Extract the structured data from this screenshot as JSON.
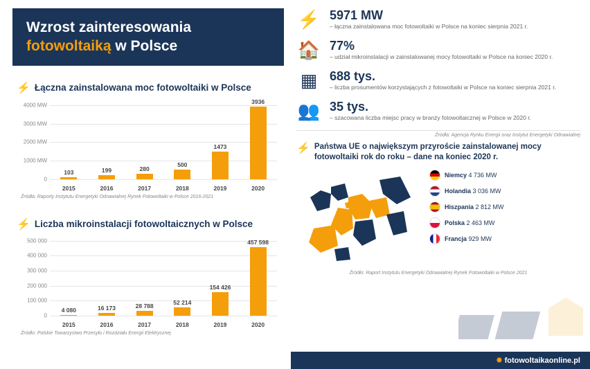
{
  "header": {
    "line1": "Wzrost zainteresowania",
    "accent": "fotowoltaiką",
    "line2_rest": " w Polsce"
  },
  "chart1": {
    "title": "Łączna zainstalowana moc fotowoltaiki w Polsce",
    "type": "bar",
    "categories": [
      "2015",
      "2016",
      "2017",
      "2018",
      "2019",
      "2020"
    ],
    "values": [
      103,
      199,
      280,
      500,
      1473,
      3936
    ],
    "bar_color": "#f59e0b",
    "y_ticks": [
      0,
      1000,
      2000,
      3000,
      4000
    ],
    "y_unit": "MW",
    "y_max": 4200,
    "source": "Źródła: Raporty Instytutu Energetyki Odnawialnej Rynek Fotowoltaiki w Polsce 2016-2021"
  },
  "chart2": {
    "title": "Liczba mikroinstalacji fotowoltaicznych w Polsce",
    "type": "bar",
    "categories": [
      "2015",
      "2016",
      "2017",
      "2018",
      "2019",
      "2020"
    ],
    "values": [
      4080,
      16173,
      28788,
      52214,
      154426,
      457598
    ],
    "value_labels": [
      "4 080",
      "16 173",
      "28 788",
      "52 214",
      "154 426",
      "457 598"
    ],
    "bar_color": "#f59e0b",
    "y_ticks": [
      0,
      100000,
      200000,
      300000,
      400000,
      500000
    ],
    "y_tick_labels": [
      "0",
      "100 000",
      "200 000",
      "300 000",
      "400 000",
      "500 000"
    ],
    "y_max": 520000,
    "source": "Źródło: Polskie Towarzystwo Przesyłu i Rozdziału Energii Elektrycznej"
  },
  "stats": [
    {
      "icon": "bolt",
      "num": "5971 MW",
      "desc": "– łączna zainstalowana moc fotowoltaiki w Polsce na koniec sierpnia 2021 r."
    },
    {
      "icon": "house",
      "num": "77%",
      "desc": "– udział mikroinstalacji w zainstalowanej mocy fotowoltaiki w Polsce na koniec 2020 r."
    },
    {
      "icon": "panel",
      "num": "688 tys.",
      "desc": "– liczba prosumentów korzystających z fotowoltaiki w Polsce na koniec sierpnia 2021 r."
    },
    {
      "icon": "people",
      "num": "35 tys.",
      "desc": "– szacowana liczba miejsc pracy w branży fotowoltaicznej w Polsce w 2020 r."
    }
  ],
  "stats_source": "Źródła: Agencja Rynku Energii oraz Instytut Energetyki Odnawialnej",
  "eu": {
    "title": "Państwa UE o największym przyroście zainstalowanej mocy fotowoltaiki rok do roku – dane na koniec 2020 r.",
    "countries": [
      {
        "flag": "de",
        "name": "Niemcy",
        "value": "4 736 MW"
      },
      {
        "flag": "nl",
        "name": "Holandia",
        "value": "3 036 MW"
      },
      {
        "flag": "es",
        "name": "Hiszpania",
        "value": "2 812 MW"
      },
      {
        "flag": "pl",
        "name": "Polska",
        "value": "2 463 MW"
      },
      {
        "flag": "fr",
        "name": "Francja",
        "value": "929 MW"
      }
    ],
    "source": "Źródło: Raport Instytutu Energetyki Odnawialnej Rynek Fotowoltaiki w Polsce 2021",
    "map_highlight_color": "#f59e0b",
    "map_base_color": "#1b3558"
  },
  "footer": {
    "brand_accent": "✱",
    "text": " fotowoltaikaonline",
    ".pl": ".pl"
  }
}
